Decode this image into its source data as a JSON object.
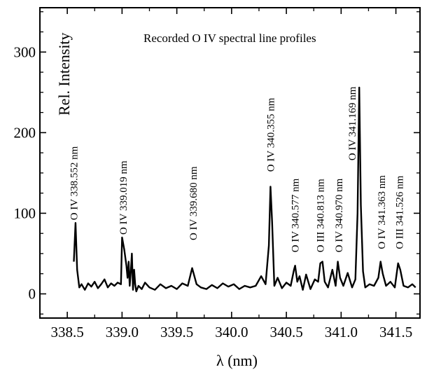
{
  "chart_data": {
    "type": "line",
    "title": "Recorded O IV spectral line profiles",
    "xlabel": "λ (nm)",
    "ylabel": "Rel. Intensity",
    "xlim": [
      338.25,
      341.72
    ],
    "ylim": [
      -30,
      355
    ],
    "xticks": [
      338.5,
      339.0,
      339.5,
      340.0,
      340.5,
      341.0,
      341.5
    ],
    "xtick_labels": [
      "338.5",
      "339.0",
      "339.5",
      "340.0",
      "340.5",
      "341.0",
      "341.5"
    ],
    "yticks": [
      0,
      100,
      200,
      300
    ],
    "ytick_labels": [
      "0",
      "100",
      "200",
      "300"
    ],
    "grid": false,
    "series": [
      {
        "x": [
          338.56,
          338.575,
          338.59,
          338.61,
          338.63,
          338.66,
          338.69,
          338.72,
          338.75,
          338.78,
          338.81,
          338.84,
          338.87,
          338.9,
          338.93,
          338.96,
          338.99,
          339.0,
          339.02,
          339.04,
          339.05,
          339.06,
          339.07,
          339.08,
          339.09,
          339.1,
          339.11,
          339.12,
          339.13,
          339.15,
          339.18,
          339.21,
          339.25,
          339.3,
          339.35,
          339.4,
          339.45,
          339.5,
          339.55,
          339.6,
          339.64,
          339.68,
          339.72,
          339.77,
          339.82,
          339.87,
          339.92,
          339.97,
          340.02,
          340.07,
          340.12,
          340.17,
          340.22,
          340.27,
          340.31,
          340.34,
          340.355,
          340.37,
          340.39,
          340.42,
          340.46,
          340.5,
          340.54,
          340.57,
          340.58,
          340.6,
          340.62,
          340.65,
          340.68,
          340.72,
          340.76,
          340.79,
          340.81,
          340.83,
          340.85,
          340.88,
          340.92,
          340.95,
          340.97,
          340.99,
          341.02,
          341.06,
          341.1,
          341.13,
          341.15,
          341.165,
          341.18,
          341.2,
          341.22,
          341.26,
          341.3,
          341.34,
          341.36,
          341.38,
          341.41,
          341.45,
          341.49,
          341.52,
          341.54,
          341.57,
          341.61,
          341.65,
          341.68
        ],
        "y": [
          40,
          88,
          30,
          8,
          12,
          5,
          13,
          9,
          15,
          7,
          12,
          18,
          8,
          13,
          10,
          14,
          12,
          70,
          55,
          35,
          20,
          40,
          10,
          28,
          50,
          5,
          30,
          12,
          3,
          10,
          6,
          14,
          8,
          5,
          12,
          7,
          10,
          6,
          13,
          10,
          32,
          12,
          8,
          6,
          11,
          7,
          13,
          9,
          12,
          6,
          10,
          8,
          10,
          22,
          12,
          60,
          133,
          90,
          10,
          20,
          7,
          14,
          10,
          30,
          35,
          15,
          22,
          5,
          24,
          6,
          18,
          15,
          38,
          40,
          15,
          8,
          30,
          10,
          40,
          20,
          10,
          26,
          8,
          18,
          100,
          256,
          110,
          28,
          8,
          12,
          10,
          20,
          40,
          25,
          10,
          15,
          8,
          38,
          30,
          10,
          8,
          12,
          8
        ]
      }
    ],
    "annotations": [
      {
        "text": "O IV 338.552 nm",
        "x": 338.56,
        "y": 88
      },
      {
        "text": "O IV 339.019 nm",
        "x": 339.01,
        "y": 70
      },
      {
        "text": "O IV 339.680 nm",
        "x": 339.65,
        "y": 63
      },
      {
        "text": "O IV 340.355 nm",
        "x": 340.355,
        "y": 148
      },
      {
        "text": "O IV 340.577 nm",
        "x": 340.58,
        "y": 48
      },
      {
        "text": "O III 340.813 nm",
        "x": 340.81,
        "y": 48
      },
      {
        "text": "O IV 340.970 nm",
        "x": 340.98,
        "y": 48
      },
      {
        "text": "O IV 341.169 nm",
        "x": 341.1,
        "y": 162
      },
      {
        "text": "O IV 341.363 nm",
        "x": 341.37,
        "y": 52
      },
      {
        "text": "O III 341.526 nm",
        "x": 341.53,
        "y": 52
      }
    ]
  }
}
